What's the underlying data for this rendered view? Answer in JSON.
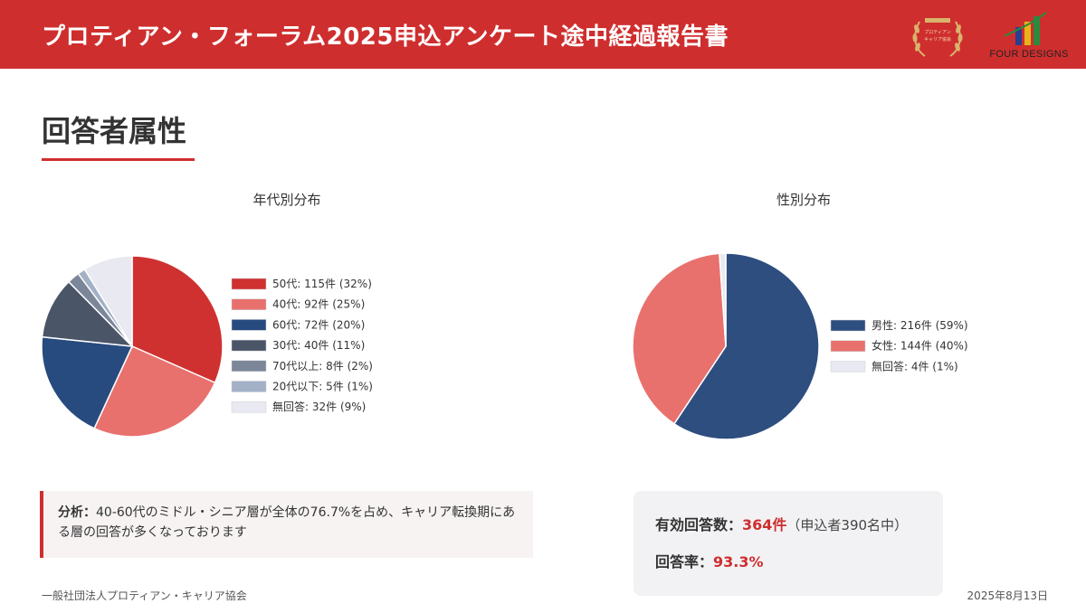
{
  "header": {
    "title": "プロティアン・フォーラム2025申込アンケート途中経過報告書",
    "seal_text": "プロティアン・キャリア協会",
    "logo_text": "FOUR DESIGNS",
    "accent_color": "#cf2e2e"
  },
  "section": {
    "title": "回答者属性"
  },
  "chart_data": [
    {
      "type": "pie",
      "title": "年代別分布",
      "slices": [
        {
          "label": "50代: 115件 (32%)",
          "value": 115,
          "color": "#cf3131"
        },
        {
          "label": "40代: 92件 (25%)",
          "value": 92,
          "color": "#e8716e"
        },
        {
          "label": "60代: 72件 (20%)",
          "value": 72,
          "color": "#274b7f"
        },
        {
          "label": "30代: 40件 (11%)",
          "value": 40,
          "color": "#4a5568"
        },
        {
          "label": "70代以上: 8件 (2%)",
          "value": 8,
          "color": "#7c8699"
        },
        {
          "label": "20代以下: 5件 (1%)",
          "value": 5,
          "color": "#a3b1c6"
        },
        {
          "label": "無回答: 32件 (9%)",
          "value": 32,
          "color": "#e8e9f1"
        }
      ]
    },
    {
      "type": "pie",
      "title": "性別分布",
      "slices": [
        {
          "label": "男性: 216件 (59%)",
          "value": 216,
          "color": "#2d4e7f"
        },
        {
          "label": "女性: 144件 (40%)",
          "value": 144,
          "color": "#e8716e"
        },
        {
          "label": "無回答: 4件 (1%)",
          "value": 4,
          "color": "#e8e9f1"
        }
      ]
    }
  ],
  "analysis": {
    "label": "分析：",
    "text": "40-60代のミドル・シニア層が全体の76.7%を占め、キャリア転換期にある層の回答が多くなっております"
  },
  "stats": {
    "valid_label": "有効回答数：",
    "valid_value": "364件",
    "valid_note": "（申込者390名中）",
    "rate_label": "回答率：",
    "rate_value": "93.3%"
  },
  "footer": {
    "org": "一般社団法人プロティアン・キャリア協会",
    "date": "2025年8月13日"
  }
}
